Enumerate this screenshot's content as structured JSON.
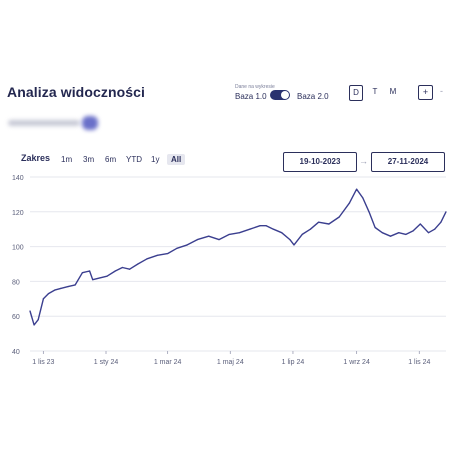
{
  "header": {
    "title": "Analiza widoczności",
    "data_source_label": "Dane na wykresie",
    "base_left": "Baza 1.0",
    "base_right": "Baza 2.0",
    "periods": [
      "D",
      "T",
      "M"
    ],
    "active_period": "D",
    "add_label": "+",
    "remove_label": "-"
  },
  "controls": {
    "range_label": "Zakres",
    "ranges": [
      "1m",
      "3m",
      "6m",
      "YTD",
      "1y",
      "All"
    ],
    "active_range": "All",
    "date_from": "19-10-2023",
    "date_to": "27-11-2024",
    "arrow": "→"
  },
  "colors": {
    "line": "#3b3f8f",
    "grid": "#e6e7ee",
    "accent": "#2a3270"
  },
  "chart_data": {
    "type": "line",
    "title": "",
    "xlabel": "",
    "ylabel": "",
    "ylim": [
      40,
      140
    ],
    "yticks": [
      40,
      60,
      80,
      100,
      120,
      140
    ],
    "xticks": [
      {
        "label": "1 lis 23",
        "x": "2023-11-01"
      },
      {
        "label": "1 sty 24",
        "x": "2024-01-01"
      },
      {
        "label": "1 mar 24",
        "x": "2024-03-01"
      },
      {
        "label": "1 maj 24",
        "x": "2024-05-01"
      },
      {
        "label": "1 lip 24",
        "x": "2024-07-01"
      },
      {
        "label": "1 wrz 24",
        "x": "2024-09-01"
      },
      {
        "label": "1 lis 24",
        "x": "2024-11-01"
      }
    ],
    "grid": true,
    "series": [
      {
        "x": [
          "2023-10-19",
          "2023-10-23",
          "2023-10-27",
          "2023-11-01",
          "2023-11-06",
          "2023-11-12",
          "2023-11-18",
          "2023-11-25",
          "2023-12-02",
          "2023-12-09",
          "2023-12-16",
          "2023-12-19",
          "2023-12-26",
          "2024-01-02",
          "2024-01-10",
          "2024-01-17",
          "2024-01-24",
          "2024-02-01",
          "2024-02-10",
          "2024-02-20",
          "2024-03-01",
          "2024-03-10",
          "2024-03-20",
          "2024-03-30",
          "2024-04-10",
          "2024-04-20",
          "2024-04-30",
          "2024-05-10",
          "2024-05-20",
          "2024-05-30",
          "2024-06-05",
          "2024-06-12",
          "2024-06-20",
          "2024-06-28",
          "2024-07-02",
          "2024-07-10",
          "2024-07-18",
          "2024-07-26",
          "2024-08-05",
          "2024-08-15",
          "2024-08-25",
          "2024-09-01",
          "2024-09-07",
          "2024-09-13",
          "2024-09-19",
          "2024-09-26",
          "2024-10-04",
          "2024-10-12",
          "2024-10-19",
          "2024-10-26",
          "2024-11-02",
          "2024-11-10",
          "2024-11-16",
          "2024-11-22",
          "2024-11-27"
        ],
        "y": [
          63,
          55,
          58,
          70,
          73,
          75,
          76,
          77,
          78,
          85,
          86,
          81,
          82,
          83,
          86,
          88,
          87,
          90,
          93,
          95,
          96,
          99,
          101,
          104,
          106,
          104,
          107,
          108,
          110,
          112,
          112,
          110,
          108,
          104,
          101,
          107,
          110,
          114,
          113,
          117,
          125,
          133,
          128,
          120,
          111,
          108,
          106,
          108,
          107,
          109,
          113,
          108,
          110,
          114,
          120
        ]
      }
    ]
  }
}
